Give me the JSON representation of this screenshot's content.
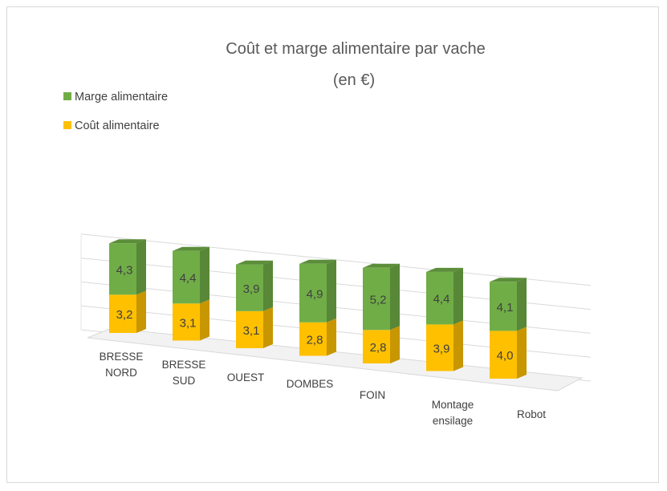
{
  "chart_data": {
    "type": "bar",
    "stacked": true,
    "three_d": true,
    "title": "Coût et marge alimentaire par vache",
    "subtitle": "(en €)",
    "categories": [
      [
        "BRESSE",
        "NORD"
      ],
      [
        "BRESSE",
        "SUD"
      ],
      [
        "OUEST"
      ],
      [
        "DOMBES"
      ],
      [
        "FOIN"
      ],
      [
        "Montage",
        "ensilage"
      ],
      [
        "Robot"
      ]
    ],
    "series": [
      {
        "name": "Coût alimentaire",
        "color": "#ffc000",
        "values": [
          3.2,
          3.1,
          3.1,
          2.8,
          2.8,
          3.9,
          4.0
        ],
        "labels": [
          "3,2",
          "3,1",
          "3,1",
          "2,8",
          "2,8",
          "3,9",
          "4,0"
        ]
      },
      {
        "name": "Marge alimentaire",
        "color": "#70ad47",
        "values": [
          4.3,
          4.4,
          3.9,
          4.9,
          5.2,
          4.4,
          4.1
        ],
        "labels": [
          "4,3",
          "4,4",
          "3,9",
          "4,9",
          "5,2",
          "4,4",
          "4,1"
        ]
      }
    ],
    "legend_position": "top-left",
    "grid": true
  }
}
